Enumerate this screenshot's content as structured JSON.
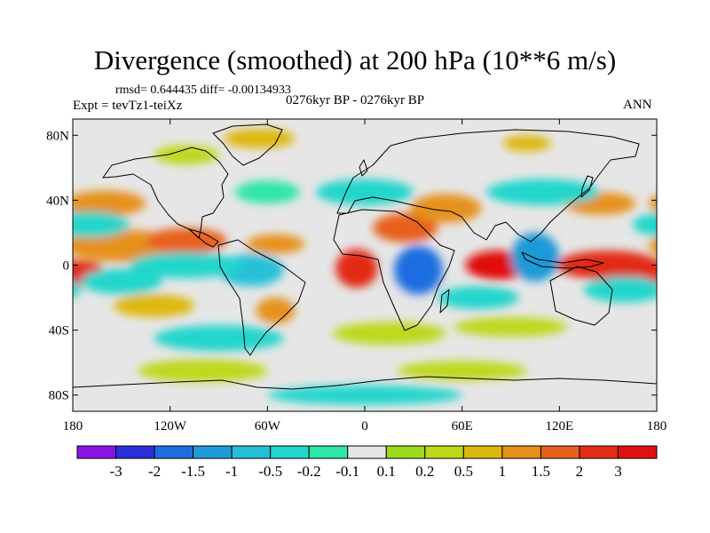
{
  "chart_data": {
    "type": "heatmap",
    "title": "Divergence (smoothed) at 200 hPa (10**6 m/s)",
    "stats_label": "rmsd= 0.644435 diff= -0.00134933",
    "experiment_label": "Expt = tevTz1-teiXz",
    "period_label": "0276kyr BP - 0276kyr BP",
    "season_label": "ANN",
    "projection": "cylindrical equidistant",
    "xlim": [
      -180,
      180
    ],
    "ylim": [
      -90,
      90
    ],
    "x_ticks": [
      {
        "value": -180,
        "label": "180"
      },
      {
        "value": -120,
        "label": "120W"
      },
      {
        "value": -60,
        "label": "60W"
      },
      {
        "value": 0,
        "label": "0"
      },
      {
        "value": 60,
        "label": "60E"
      },
      {
        "value": 120,
        "label": "120E"
      },
      {
        "value": 180,
        "label": "180"
      }
    ],
    "y_ticks": [
      {
        "value": 80,
        "label": "80N"
      },
      {
        "value": 40,
        "label": "40N"
      },
      {
        "value": 0,
        "label": "0"
      },
      {
        "value": -40,
        "label": "40S"
      },
      {
        "value": -80,
        "label": "80S"
      }
    ],
    "colorbar": {
      "levels": [
        "-3",
        "-2",
        "-1.5",
        "-1",
        "-0.5",
        "-0.2",
        "-0.1",
        "0.1",
        "0.2",
        "0.5",
        "1",
        "1.5",
        "2",
        "3"
      ],
      "colors": [
        "#8a14e6",
        "#2a30dc",
        "#1f6ee0",
        "#1e9ad8",
        "#25c0d8",
        "#22d6cc",
        "#2ee6a8",
        "#e6e6e6",
        "#9cda1c",
        "#bed81a",
        "#ddb811",
        "#e6911a",
        "#e8601e",
        "#e22c18",
        "#e01010"
      ]
    },
    "field_features": [
      {
        "lon": 82,
        "lat": 0,
        "rx": 20,
        "ry": 9,
        "value": 3
      },
      {
        "lon": -5,
        "lat": -2,
        "rx": 13,
        "ry": 12,
        "value": 2.5
      },
      {
        "lon": -175,
        "lat": -5,
        "rx": 15,
        "ry": 8,
        "value": 2
      },
      {
        "lon": 150,
        "lat": 0,
        "rx": 32,
        "ry": 9,
        "value": 2
      },
      {
        "lon": -150,
        "lat": 12,
        "rx": 35,
        "ry": 10,
        "value": 1.2
      },
      {
        "lon": -110,
        "lat": 15,
        "rx": 25,
        "ry": 8,
        "value": 1.5
      },
      {
        "lon": -55,
        "lat": 13,
        "rx": 18,
        "ry": 6,
        "value": 1.2
      },
      {
        "lon": 25,
        "lat": 23,
        "rx": 20,
        "ry": 9,
        "value": 1.5
      },
      {
        "lon": 50,
        "lat": 35,
        "rx": 22,
        "ry": 9,
        "value": 1
      },
      {
        "lon": -160,
        "lat": 38,
        "rx": 25,
        "ry": 8,
        "value": 1
      },
      {
        "lon": 145,
        "lat": 38,
        "rx": 22,
        "ry": 7,
        "value": 1
      },
      {
        "lon": -55,
        "lat": -28,
        "rx": 12,
        "ry": 8,
        "value": 1.2
      },
      {
        "lon": -130,
        "lat": -25,
        "rx": 25,
        "ry": 7,
        "value": 0.5
      },
      {
        "lon": 15,
        "lat": -42,
        "rx": 35,
        "ry": 7,
        "value": 0.3
      },
      {
        "lon": 90,
        "lat": -38,
        "rx": 35,
        "ry": 6,
        "value": 0.3
      },
      {
        "lon": -100,
        "lat": -65,
        "rx": 40,
        "ry": 7,
        "value": 0.3
      },
      {
        "lon": 60,
        "lat": -65,
        "rx": 40,
        "ry": 6,
        "value": 0.3
      },
      {
        "lon": -110,
        "lat": 68,
        "rx": 20,
        "ry": 6,
        "value": 0.3
      },
      {
        "lon": -65,
        "lat": 78,
        "rx": 22,
        "ry": 6,
        "value": 0.5
      },
      {
        "lon": 100,
        "lat": 75,
        "rx": 15,
        "ry": 5,
        "value": 0.5
      },
      {
        "lon": 33,
        "lat": -3,
        "rx": 15,
        "ry": 15,
        "value": -2
      },
      {
        "lon": 105,
        "lat": 5,
        "rx": 15,
        "ry": 15,
        "value": -1.5
      },
      {
        "lon": -70,
        "lat": -3,
        "rx": 20,
        "ry": 10,
        "value": -1
      },
      {
        "lon": -110,
        "lat": 0,
        "rx": 35,
        "ry": 8,
        "value": -0.5
      },
      {
        "lon": -170,
        "lat": 25,
        "rx": 25,
        "ry": 8,
        "value": -0.5
      },
      {
        "lon": 0,
        "lat": 45,
        "rx": 30,
        "ry": 8,
        "value": -0.5
      },
      {
        "lon": 110,
        "lat": 45,
        "rx": 35,
        "ry": 8,
        "value": -0.5
      },
      {
        "lon": -150,
        "lat": -10,
        "rx": 25,
        "ry": 8,
        "value": -0.5
      },
      {
        "lon": 160,
        "lat": -15,
        "rx": 25,
        "ry": 8,
        "value": -0.5
      },
      {
        "lon": -90,
        "lat": -45,
        "rx": 40,
        "ry": 8,
        "value": -0.5
      },
      {
        "lon": 70,
        "lat": -20,
        "rx": 25,
        "ry": 7,
        "value": -0.5
      },
      {
        "lon": -60,
        "lat": 45,
        "rx": 20,
        "ry": 7,
        "value": -0.2
      },
      {
        "lon": 0,
        "lat": -80,
        "rx": 60,
        "ry": 6,
        "value": -0.5
      }
    ]
  }
}
